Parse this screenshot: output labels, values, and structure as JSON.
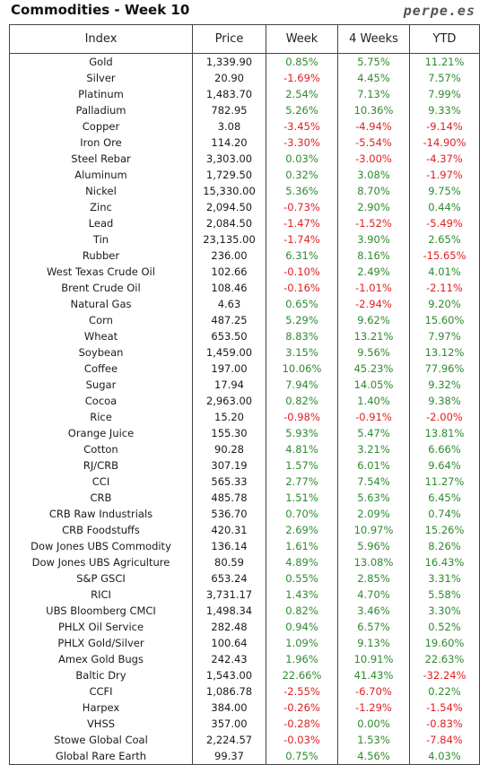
{
  "header": {
    "title": "Commodities - Week 10",
    "brand": "perpe.es"
  },
  "columns": [
    "Index",
    "Price",
    "Week",
    "4 Weeks",
    "YTD"
  ],
  "colors": {
    "positive": "#2e8b2e",
    "negative": "#e02020"
  },
  "rows": [
    [
      "Gold",
      "1,339.90",
      "0.85%",
      "5.75%",
      "11.21%"
    ],
    [
      "Silver",
      "20.90",
      "-1.69%",
      "4.45%",
      "7.57%"
    ],
    [
      "Platinum",
      "1,483.70",
      "2.54%",
      "7.13%",
      "7.99%"
    ],
    [
      "Palladium",
      "782.95",
      "5.26%",
      "10.36%",
      "9.33%"
    ],
    [
      "Copper",
      "3.08",
      "-3.45%",
      "-4.94%",
      "-9.14%"
    ],
    [
      "Iron Ore",
      "114.20",
      "-3.30%",
      "-5.54%",
      "-14.90%"
    ],
    [
      "Steel Rebar",
      "3,303.00",
      "0.03%",
      "-3.00%",
      "-4.37%"
    ],
    [
      "Aluminum",
      "1,729.50",
      "0.32%",
      "3.08%",
      "-1.97%"
    ],
    [
      "Nickel",
      "15,330.00",
      "5.36%",
      "8.70%",
      "9.75%"
    ],
    [
      "Zinc",
      "2,094.50",
      "-0.73%",
      "2.90%",
      "0.44%"
    ],
    [
      "Lead",
      "2,084.50",
      "-1.47%",
      "-1.52%",
      "-5.49%"
    ],
    [
      "Tin",
      "23,135.00",
      "-1.74%",
      "3.90%",
      "2.65%"
    ],
    [
      "Rubber",
      "236.00",
      "6.31%",
      "8.16%",
      "-15.65%"
    ],
    [
      "West Texas Crude Oil",
      "102.66",
      "-0.10%",
      "2.49%",
      "4.01%"
    ],
    [
      "Brent Crude Oil",
      "108.46",
      "-0.16%",
      "-1.01%",
      "-2.11%"
    ],
    [
      "Natural Gas",
      "4.63",
      "0.65%",
      "-2.94%",
      "9.20%"
    ],
    [
      "Corn",
      "487.25",
      "5.29%",
      "9.62%",
      "15.60%"
    ],
    [
      "Wheat",
      "653.50",
      "8.83%",
      "13.21%",
      "7.97%"
    ],
    [
      "Soybean",
      "1,459.00",
      "3.15%",
      "9.56%",
      "13.12%"
    ],
    [
      "Coffee",
      "197.00",
      "10.06%",
      "45.23%",
      "77.96%"
    ],
    [
      "Sugar",
      "17.94",
      "7.94%",
      "14.05%",
      "9.32%"
    ],
    [
      "Cocoa",
      "2,963.00",
      "0.82%",
      "1.40%",
      "9.38%"
    ],
    [
      "Rice",
      "15.20",
      "-0.98%",
      "-0.91%",
      "-2.00%"
    ],
    [
      "Orange Juice",
      "155.30",
      "5.93%",
      "5.47%",
      "13.81%"
    ],
    [
      "Cotton",
      "90.28",
      "4.81%",
      "3.21%",
      "6.66%"
    ],
    [
      "RJ/CRB",
      "307.19",
      "1.57%",
      "6.01%",
      "9.64%"
    ],
    [
      "CCI",
      "565.33",
      "2.77%",
      "7.54%",
      "11.27%"
    ],
    [
      "CRB",
      "485.78",
      "1.51%",
      "5.63%",
      "6.45%"
    ],
    [
      "CRB Raw Industrials",
      "536.70",
      "0.70%",
      "2.09%",
      "0.74%"
    ],
    [
      "CRB Foodstuffs",
      "420.31",
      "2.69%",
      "10.97%",
      "15.26%"
    ],
    [
      "Dow Jones UBS Commodity",
      "136.14",
      "1.61%",
      "5.96%",
      "8.26%"
    ],
    [
      "Dow Jones UBS Agriculture",
      "80.59",
      "4.89%",
      "13.08%",
      "16.43%"
    ],
    [
      "S&P GSCI",
      "653.24",
      "0.55%",
      "2.85%",
      "3.31%"
    ],
    [
      "RICI",
      "3,731.17",
      "1.43%",
      "4.70%",
      "5.58%"
    ],
    [
      "UBS Bloomberg CMCI",
      "1,498.34",
      "0.82%",
      "3.46%",
      "3.30%"
    ],
    [
      "PHLX Oil Service",
      "282.48",
      "0.94%",
      "6.57%",
      "0.52%"
    ],
    [
      "PHLX Gold/Silver",
      "100.64",
      "1.09%",
      "9.13%",
      "19.60%"
    ],
    [
      "Amex Gold Bugs",
      "242.43",
      "1.96%",
      "10.91%",
      "22.63%"
    ],
    [
      "Baltic Dry",
      "1,543.00",
      "22.66%",
      "41.43%",
      "-32.24%"
    ],
    [
      "CCFI",
      "1,086.78",
      "-2.55%",
      "-6.70%",
      "0.22%"
    ],
    [
      "Harpex",
      "384.00",
      "-0.26%",
      "-1.29%",
      "-1.54%"
    ],
    [
      "VHSS",
      "357.00",
      "-0.28%",
      "0.00%",
      "-0.83%"
    ],
    [
      "Stowe Global Coal",
      "2,224.57",
      "-0.03%",
      "1.53%",
      "-7.84%"
    ],
    [
      "Global Rare Earth",
      "99.37",
      "0.75%",
      "4.56%",
      "4.03%"
    ]
  ]
}
